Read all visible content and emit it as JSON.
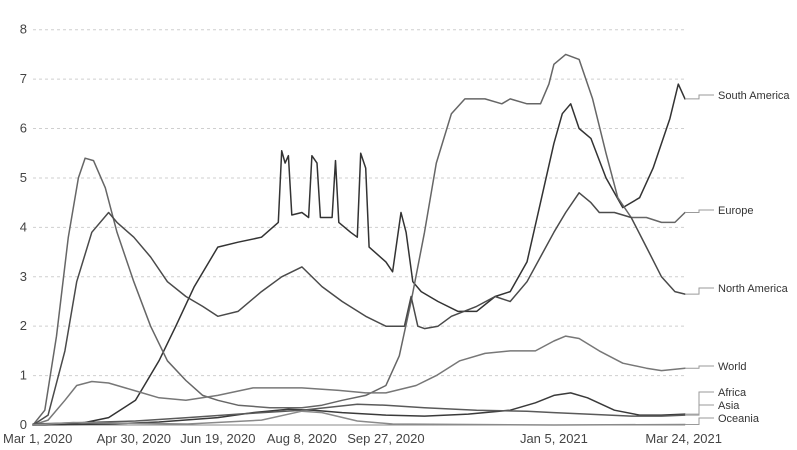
{
  "chart_data": {
    "type": "line",
    "title": "",
    "xlabel": "",
    "ylabel": "",
    "x_start": "2020-03-01",
    "x_end": "2021-03-24",
    "ylim": [
      0,
      8.5
    ],
    "grid": true,
    "y_ticks": [
      0,
      1,
      2,
      3,
      4,
      5,
      6,
      7,
      8
    ],
    "x_ticks": [
      {
        "date": "2020-03-01",
        "label": "Mar 1, 2020"
      },
      {
        "date": "2020-04-30",
        "label": "Apr 30, 2020"
      },
      {
        "date": "2020-06-19",
        "label": "Jun 19, 2020"
      },
      {
        "date": "2020-08-08",
        "label": "Aug 8, 2020"
      },
      {
        "date": "2020-09-27",
        "label": "Sep 27, 2020"
      },
      {
        "date": "2021-01-05",
        "label": "Jan 5, 2021"
      },
      {
        "date": "2021-03-24",
        "label": "Mar 24, 2021"
      }
    ],
    "legend": "labels at line ends",
    "series": [
      {
        "name": "South America",
        "color": "#333333",
        "points": [
          [
            "2020-03-01",
            0
          ],
          [
            "2020-03-20",
            0.01
          ],
          [
            "2020-04-01",
            0.05
          ],
          [
            "2020-04-15",
            0.15
          ],
          [
            "2020-05-01",
            0.5
          ],
          [
            "2020-05-15",
            1.3
          ],
          [
            "2020-05-25",
            2.0
          ],
          [
            "2020-06-05",
            2.8
          ],
          [
            "2020-06-19",
            3.6
          ],
          [
            "2020-07-01",
            3.7
          ],
          [
            "2020-07-15",
            3.8
          ],
          [
            "2020-07-25",
            4.1
          ],
          [
            "2020-07-27",
            5.55
          ],
          [
            "2020-07-29",
            5.3
          ],
          [
            "2020-07-31",
            5.45
          ],
          [
            "2020-08-02",
            4.25
          ],
          [
            "2020-08-08",
            4.3
          ],
          [
            "2020-08-12",
            4.2
          ],
          [
            "2020-08-14",
            5.45
          ],
          [
            "2020-08-17",
            5.3
          ],
          [
            "2020-08-19",
            4.2
          ],
          [
            "2020-08-26",
            4.2
          ],
          [
            "2020-08-28",
            5.35
          ],
          [
            "2020-08-30",
            4.1
          ],
          [
            "2020-09-06",
            3.9
          ],
          [
            "2020-09-10",
            3.8
          ],
          [
            "2020-09-12",
            5.5
          ],
          [
            "2020-09-15",
            5.2
          ],
          [
            "2020-09-17",
            3.6
          ],
          [
            "2020-09-27",
            3.3
          ],
          [
            "2020-10-01",
            3.1
          ],
          [
            "2020-10-06",
            4.3
          ],
          [
            "2020-10-09",
            3.9
          ],
          [
            "2020-10-13",
            2.9
          ],
          [
            "2020-10-18",
            2.7
          ],
          [
            "2020-10-28",
            2.5
          ],
          [
            "2020-11-09",
            2.3
          ],
          [
            "2020-11-20",
            2.3
          ],
          [
            "2020-12-01",
            2.6
          ],
          [
            "2020-12-10",
            2.7
          ],
          [
            "2020-12-20",
            3.3
          ],
          [
            "2020-12-28",
            4.5
          ],
          [
            "2021-01-05",
            5.7
          ],
          [
            "2021-01-10",
            6.3
          ],
          [
            "2021-01-15",
            6.5
          ],
          [
            "2021-01-20",
            6.0
          ],
          [
            "2021-01-27",
            5.8
          ],
          [
            "2021-02-05",
            5.0
          ],
          [
            "2021-02-15",
            4.4
          ],
          [
            "2021-02-25",
            4.6
          ],
          [
            "2021-03-05",
            5.2
          ],
          [
            "2021-03-15",
            6.2
          ],
          [
            "2021-03-20",
            6.9
          ],
          [
            "2021-03-24",
            6.6
          ]
        ]
      },
      {
        "name": "Europe",
        "color": "#666666",
        "points": [
          [
            "2020-03-01",
            0
          ],
          [
            "2020-03-08",
            0.3
          ],
          [
            "2020-03-15",
            1.8
          ],
          [
            "2020-03-22",
            3.8
          ],
          [
            "2020-03-28",
            5.0
          ],
          [
            "2020-04-01",
            5.4
          ],
          [
            "2020-04-06",
            5.35
          ],
          [
            "2020-04-13",
            4.8
          ],
          [
            "2020-04-20",
            3.9
          ],
          [
            "2020-04-30",
            2.9
          ],
          [
            "2020-05-10",
            2.0
          ],
          [
            "2020-05-20",
            1.3
          ],
          [
            "2020-05-31",
            0.9
          ],
          [
            "2020-06-10",
            0.6
          ],
          [
            "2020-06-19",
            0.5
          ],
          [
            "2020-07-01",
            0.4
          ],
          [
            "2020-07-20",
            0.35
          ],
          [
            "2020-08-08",
            0.35
          ],
          [
            "2020-08-20",
            0.4
          ],
          [
            "2020-09-01",
            0.5
          ],
          [
            "2020-09-15",
            0.6
          ],
          [
            "2020-09-27",
            0.8
          ],
          [
            "2020-10-05",
            1.4
          ],
          [
            "2020-10-12",
            2.5
          ],
          [
            "2020-10-20",
            3.9
          ],
          [
            "2020-10-27",
            5.3
          ],
          [
            "2020-11-05",
            6.3
          ],
          [
            "2020-11-13",
            6.6
          ],
          [
            "2020-11-25",
            6.6
          ],
          [
            "2020-12-05",
            6.5
          ],
          [
            "2020-12-10",
            6.6
          ],
          [
            "2020-12-20",
            6.5
          ],
          [
            "2020-12-28",
            6.5
          ],
          [
            "2021-01-02",
            6.9
          ],
          [
            "2021-01-05",
            7.3
          ],
          [
            "2021-01-12",
            7.5
          ],
          [
            "2021-01-20",
            7.4
          ],
          [
            "2021-01-28",
            6.6
          ],
          [
            "2021-02-05",
            5.5
          ],
          [
            "2021-02-12",
            4.6
          ],
          [
            "2021-02-20",
            4.2
          ],
          [
            "2021-03-01",
            4.2
          ],
          [
            "2021-03-10",
            4.1
          ],
          [
            "2021-03-18",
            4.1
          ],
          [
            "2021-03-24",
            4.3
          ]
        ]
      },
      {
        "name": "North America",
        "color": "#4a4a4a",
        "points": [
          [
            "2020-03-01",
            0
          ],
          [
            "2020-03-10",
            0.2
          ],
          [
            "2020-03-20",
            1.5
          ],
          [
            "2020-03-27",
            2.9
          ],
          [
            "2020-04-05",
            3.9
          ],
          [
            "2020-04-15",
            4.3
          ],
          [
            "2020-04-20",
            4.1
          ],
          [
            "2020-04-30",
            3.8
          ],
          [
            "2020-05-10",
            3.4
          ],
          [
            "2020-05-20",
            2.9
          ],
          [
            "2020-05-31",
            2.6
          ],
          [
            "2020-06-10",
            2.4
          ],
          [
            "2020-06-19",
            2.2
          ],
          [
            "2020-07-01",
            2.3
          ],
          [
            "2020-07-15",
            2.7
          ],
          [
            "2020-07-27",
            3.0
          ],
          [
            "2020-08-08",
            3.2
          ],
          [
            "2020-08-20",
            2.8
          ],
          [
            "2020-09-01",
            2.5
          ],
          [
            "2020-09-15",
            2.2
          ],
          [
            "2020-09-27",
            2.0
          ],
          [
            "2020-10-08",
            2.0
          ],
          [
            "2020-10-12",
            2.6
          ],
          [
            "2020-10-16",
            2.0
          ],
          [
            "2020-10-20",
            1.95
          ],
          [
            "2020-10-28",
            2.0
          ],
          [
            "2020-11-05",
            2.2
          ],
          [
            "2020-11-20",
            2.4
          ],
          [
            "2020-12-01",
            2.6
          ],
          [
            "2020-12-10",
            2.5
          ],
          [
            "2020-12-20",
            2.9
          ],
          [
            "2021-01-05",
            3.9
          ],
          [
            "2021-01-12",
            4.3
          ],
          [
            "2021-01-20",
            4.7
          ],
          [
            "2021-01-27",
            4.5
          ],
          [
            "2021-02-01",
            4.3
          ],
          [
            "2021-02-10",
            4.3
          ],
          [
            "2021-02-20",
            4.2
          ],
          [
            "2021-03-01",
            3.6
          ],
          [
            "2021-03-10",
            3.0
          ],
          [
            "2021-03-18",
            2.7
          ],
          [
            "2021-03-24",
            2.65
          ]
        ]
      },
      {
        "name": "World",
        "color": "#777777",
        "points": [
          [
            "2020-03-01",
            0
          ],
          [
            "2020-03-10",
            0.1
          ],
          [
            "2020-03-20",
            0.5
          ],
          [
            "2020-03-27",
            0.8
          ],
          [
            "2020-04-05",
            0.88
          ],
          [
            "2020-04-15",
            0.85
          ],
          [
            "2020-04-30",
            0.7
          ],
          [
            "2020-05-15",
            0.55
          ],
          [
            "2020-05-31",
            0.5
          ],
          [
            "2020-06-19",
            0.6
          ],
          [
            "2020-07-10",
            0.75
          ],
          [
            "2020-08-08",
            0.75
          ],
          [
            "2020-08-30",
            0.7
          ],
          [
            "2020-09-15",
            0.65
          ],
          [
            "2020-09-27",
            0.65
          ],
          [
            "2020-10-15",
            0.8
          ],
          [
            "2020-10-27",
            1.0
          ],
          [
            "2020-11-10",
            1.3
          ],
          [
            "2020-11-25",
            1.45
          ],
          [
            "2020-12-10",
            1.5
          ],
          [
            "2020-12-25",
            1.5
          ],
          [
            "2021-01-05",
            1.7
          ],
          [
            "2021-01-12",
            1.8
          ],
          [
            "2021-01-20",
            1.75
          ],
          [
            "2021-02-01",
            1.5
          ],
          [
            "2021-02-15",
            1.25
          ],
          [
            "2021-03-01",
            1.15
          ],
          [
            "2021-03-10",
            1.1
          ],
          [
            "2021-03-24",
            1.15
          ]
        ]
      },
      {
        "name": "Africa",
        "color": "#3a3a3a",
        "points": [
          [
            "2020-03-01",
            0
          ],
          [
            "2020-04-15",
            0.02
          ],
          [
            "2020-05-15",
            0.06
          ],
          [
            "2020-06-19",
            0.15
          ],
          [
            "2020-07-10",
            0.25
          ],
          [
            "2020-07-31",
            0.32
          ],
          [
            "2020-08-15",
            0.3
          ],
          [
            "2020-09-01",
            0.25
          ],
          [
            "2020-09-27",
            0.2
          ],
          [
            "2020-10-20",
            0.18
          ],
          [
            "2020-11-15",
            0.22
          ],
          [
            "2020-12-10",
            0.3
          ],
          [
            "2020-12-25",
            0.45
          ],
          [
            "2021-01-05",
            0.6
          ],
          [
            "2021-01-15",
            0.65
          ],
          [
            "2021-01-25",
            0.55
          ],
          [
            "2021-02-10",
            0.3
          ],
          [
            "2021-02-25",
            0.2
          ],
          [
            "2021-03-10",
            0.2
          ],
          [
            "2021-03-24",
            0.22
          ]
        ]
      },
      {
        "name": "Asia",
        "color": "#5a5a5a",
        "points": [
          [
            "2020-03-01",
            0.02
          ],
          [
            "2020-04-01",
            0.05
          ],
          [
            "2020-05-01",
            0.08
          ],
          [
            "2020-06-01",
            0.15
          ],
          [
            "2020-07-01",
            0.22
          ],
          [
            "2020-08-08",
            0.3
          ],
          [
            "2020-09-10",
            0.42
          ],
          [
            "2020-09-27",
            0.4
          ],
          [
            "2020-10-20",
            0.35
          ],
          [
            "2020-11-20",
            0.3
          ],
          [
            "2020-12-20",
            0.28
          ],
          [
            "2021-01-05",
            0.25
          ],
          [
            "2021-01-25",
            0.22
          ],
          [
            "2021-02-20",
            0.18
          ],
          [
            "2021-03-10",
            0.18
          ],
          [
            "2021-03-24",
            0.2
          ]
        ]
      },
      {
        "name": "Oceania",
        "color": "#8a8a8a",
        "points": [
          [
            "2020-03-01",
            0
          ],
          [
            "2020-03-25",
            0.05
          ],
          [
            "2020-04-10",
            0.04
          ],
          [
            "2020-06-01",
            0.02
          ],
          [
            "2020-07-15",
            0.1
          ],
          [
            "2020-08-08",
            0.28
          ],
          [
            "2020-08-20",
            0.25
          ],
          [
            "2020-09-10",
            0.08
          ],
          [
            "2020-10-01",
            0.02
          ],
          [
            "2021-01-05",
            0.0
          ],
          [
            "2021-03-24",
            0.01
          ]
        ]
      }
    ]
  }
}
